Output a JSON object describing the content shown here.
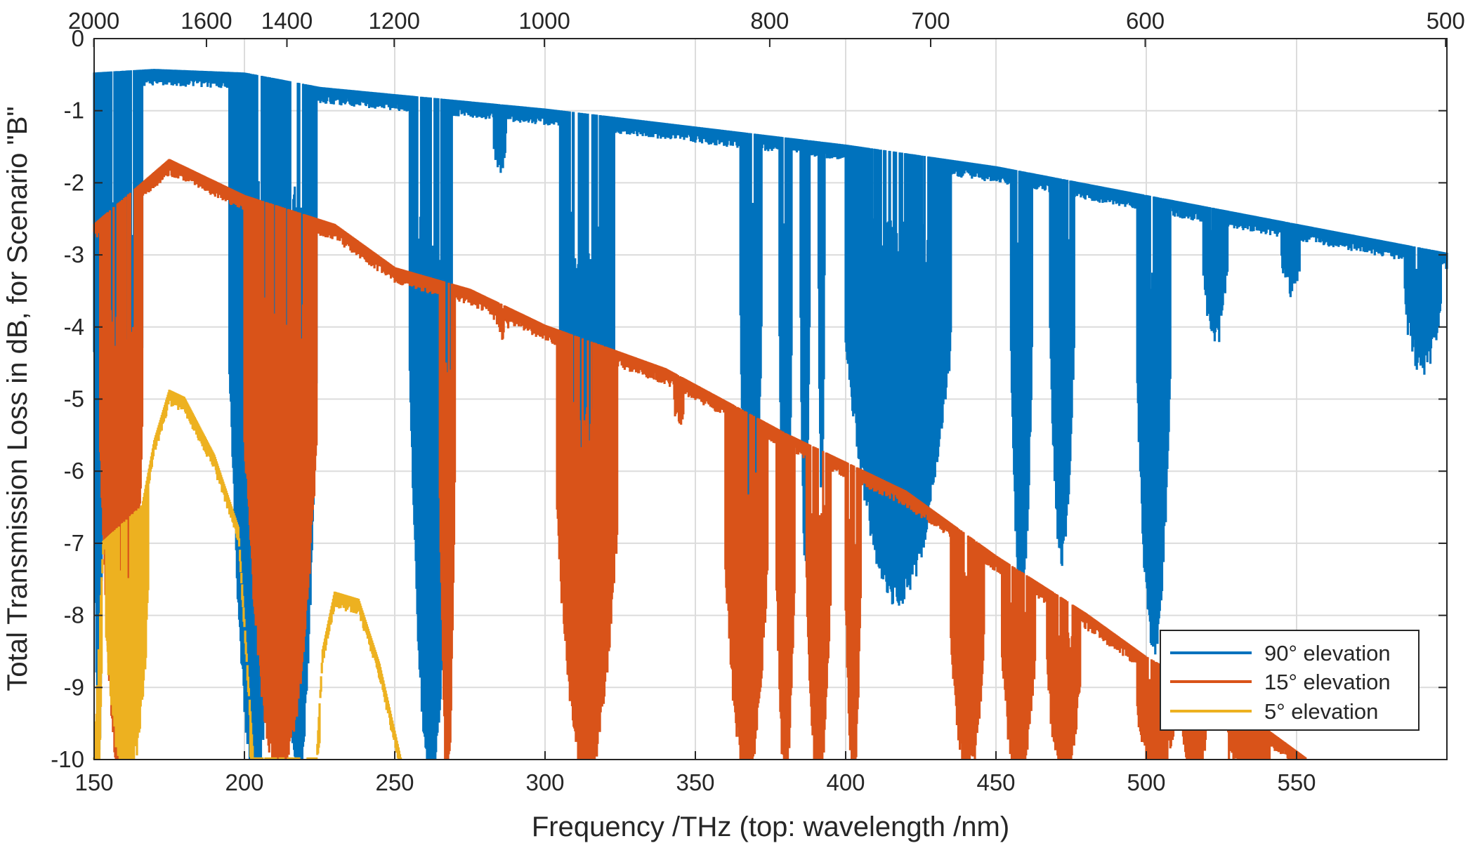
{
  "chart_data": {
    "type": "area",
    "xlabel": "Frequency  /THz  (top: wavelength  /nm)",
    "ylabel": "Total Transmission Loss in dB,  for Scenario  \"B\"",
    "xlim": [
      150,
      600
    ],
    "ylim": [
      -10,
      0
    ],
    "grid": true,
    "legend_position": "bottom-right",
    "x_ticks": [
      150,
      200,
      250,
      300,
      350,
      400,
      450,
      500,
      550
    ],
    "x_tick_labels": [
      "150",
      "200",
      "250",
      "300",
      "350",
      "400",
      "450",
      "500",
      "550"
    ],
    "y_ticks": [
      0,
      -1,
      -2,
      -3,
      -4,
      -5,
      -6,
      -7,
      -8,
      -9,
      -10
    ],
    "y_tick_labels": [
      "0",
      "-1",
      "-2",
      "-3",
      "-4",
      "-5",
      "-6",
      "-7",
      "-8",
      "-9",
      "-10"
    ],
    "top_axis": {
      "unit": "nm",
      "wavelengths": [
        2000,
        1600,
        1400,
        1200,
        1000,
        800,
        700,
        600,
        500
      ],
      "tick_labels": [
        "2000",
        "1600",
        "1400",
        "1200",
        "1000",
        "800",
        "700",
        "600",
        "500"
      ]
    },
    "series": [
      {
        "name": "90° elevation",
        "color": "#0072BD",
        "baseline": [
          [
            150,
            -0.5
          ],
          [
            170,
            -0.45
          ],
          [
            200,
            -0.5
          ],
          [
            225,
            -0.7
          ],
          [
            250,
            -0.8
          ],
          [
            275,
            -0.9
          ],
          [
            300,
            -1.0
          ],
          [
            340,
            -1.2
          ],
          [
            400,
            -1.5
          ],
          [
            450,
            -1.8
          ],
          [
            500,
            -2.2
          ],
          [
            550,
            -2.6
          ],
          [
            600,
            -3.0
          ]
        ],
        "absorption_bands": [
          {
            "from": 150,
            "to": 153,
            "min": -10
          },
          {
            "from": 153,
            "to": 166,
            "min": -10
          },
          {
            "from": 195,
            "to": 212,
            "min": -10
          },
          {
            "from": 212,
            "to": 224,
            "min": -10
          },
          {
            "from": 255,
            "to": 269,
            "min": -10
          },
          {
            "from": 283,
            "to": 287,
            "min": -1.5
          },
          {
            "from": 305,
            "to": 323,
            "min": -10
          },
          {
            "from": 365,
            "to": 372,
            "min": -7.5
          },
          {
            "from": 378,
            "to": 382,
            "min": -8.0
          },
          {
            "from": 385,
            "to": 388,
            "min": -7.0
          },
          {
            "from": 391,
            "to": 393,
            "min": -6.0
          },
          {
            "from": 400,
            "to": 435,
            "min": -7.5
          },
          {
            "from": 455,
            "to": 462,
            "min": -7.6
          },
          {
            "from": 468,
            "to": 476,
            "min": -7.0
          },
          {
            "from": 497,
            "to": 508,
            "min": -8.2
          },
          {
            "from": 519,
            "to": 527,
            "min": -3.9
          },
          {
            "from": 545,
            "to": 551,
            "min": -3.2
          },
          {
            "from": 586,
            "to": 598,
            "min": -4.3
          }
        ]
      },
      {
        "name": "15° elevation",
        "color": "#D95319",
        "baseline": [
          [
            150,
            -2.6
          ],
          [
            175,
            -1.7
          ],
          [
            200,
            -2.2
          ],
          [
            230,
            -2.6
          ],
          [
            250,
            -3.2
          ],
          [
            275,
            -3.5
          ],
          [
            300,
            -4.0
          ],
          [
            340,
            -4.6
          ],
          [
            380,
            -5.5
          ],
          [
            420,
            -6.3
          ],
          [
            450,
            -7.2
          ],
          [
            480,
            -8.0
          ],
          [
            500,
            -8.6
          ],
          [
            530,
            -9.3
          ],
          [
            553,
            -10
          ]
        ],
        "absorption_bands": [
          {
            "from": 152,
            "to": 166,
            "min": -10
          },
          {
            "from": 200,
            "to": 224,
            "min": -10
          },
          {
            "from": 265,
            "to": 270,
            "min": -10
          },
          {
            "from": 283,
            "to": 288,
            "min": -3.8
          },
          {
            "from": 304,
            "to": 324,
            "min": -10
          },
          {
            "from": 343,
            "to": 346,
            "min": -5.0
          },
          {
            "from": 360,
            "to": 374,
            "min": -10
          },
          {
            "from": 377,
            "to": 383,
            "min": -10
          },
          {
            "from": 387,
            "to": 395,
            "min": -10
          },
          {
            "from": 400,
            "to": 405,
            "min": -10
          },
          {
            "from": 435,
            "to": 446,
            "min": -10
          },
          {
            "from": 452,
            "to": 463,
            "min": -10
          },
          {
            "from": 467,
            "to": 478,
            "min": -10
          },
          {
            "from": 497,
            "to": 509,
            "min": -10
          },
          {
            "from": 512,
            "to": 520,
            "min": -10
          },
          {
            "from": 527,
            "to": 541,
            "min": -10
          }
        ]
      },
      {
        "name": "5° elevation",
        "color": "#EDB120",
        "baseline": [
          [
            150,
            -10
          ],
          [
            153,
            -7.0
          ],
          [
            166,
            -6.5
          ],
          [
            170,
            -5.6
          ],
          [
            175,
            -4.9
          ],
          [
            180,
            -5.0
          ],
          [
            190,
            -5.8
          ],
          [
            198,
            -6.8
          ],
          [
            203,
            -10
          ],
          [
            224,
            -10
          ],
          [
            226,
            -8.5
          ],
          [
            230,
            -7.7
          ],
          [
            238,
            -7.8
          ],
          [
            245,
            -8.7
          ],
          [
            252,
            -10
          ]
        ],
        "absorption_bands": [
          {
            "from": 150,
            "to": 152.5,
            "min": -10
          },
          {
            "from": 154,
            "to": 168,
            "min": -10
          },
          {
            "from": 202,
            "to": 225,
            "min": -10
          }
        ]
      }
    ]
  }
}
